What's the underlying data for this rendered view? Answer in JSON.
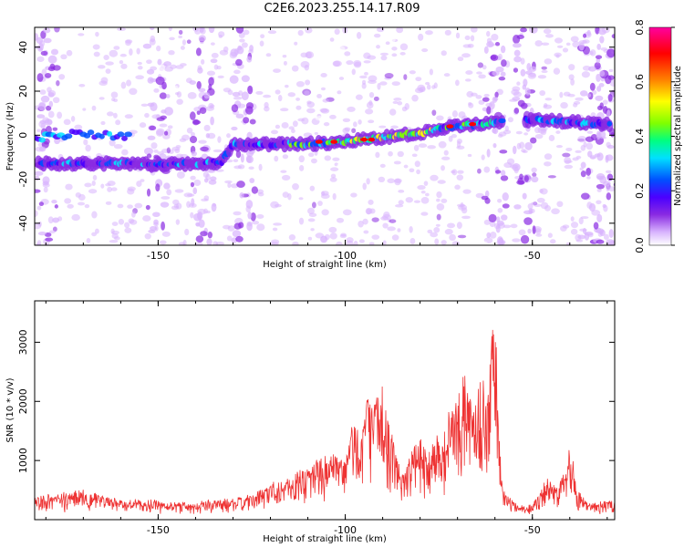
{
  "title": "C2E6.2023.255.14.17.R09",
  "chart_data": [
    {
      "type": "heatmap",
      "xlabel": "Height of straight line (km)",
      "ylabel": "Frequency (Hz)",
      "xlim": [
        -183,
        -28
      ],
      "ylim": [
        -50,
        49
      ],
      "xticks": [
        -150,
        -100,
        -50
      ],
      "yticks": [
        -40,
        -20,
        0,
        20,
        40
      ],
      "colorbar": {
        "label": "Normalized spectral amplitude",
        "range": [
          0,
          0.8
        ],
        "ticks": [
          "0.0",
          "0.2",
          "0.4",
          "0.6",
          "0.8"
        ],
        "colormap": [
          "#ffffff",
          "#d8b4fe",
          "#8a2be2",
          "#4b00ff",
          "#0050ff",
          "#00e0ff",
          "#00ff80",
          "#80ff00",
          "#ffff00",
          "#ff8000",
          "#ff0000",
          "#ff00a0"
        ]
      },
      "ridge": {
        "height_km": [
          -180,
          -170,
          -160,
          -150,
          -140,
          -133,
          -130,
          -120,
          -110,
          -100,
          -95,
          -90,
          -85,
          -80,
          -75,
          -70,
          -65,
          -60,
          -50,
          -40,
          -30
        ],
        "frequency_hz": [
          -13,
          -13,
          -13,
          -13,
          -13,
          -12,
          -4,
          -4,
          -4,
          -3,
          -2,
          -1,
          0,
          1,
          3,
          4,
          5,
          6,
          7,
          6,
          5
        ]
      },
      "upper_band": {
        "height_km": [
          -180,
          -175,
          -170,
          -165,
          -160
        ],
        "frequency_hz": [
          -1,
          0,
          1,
          0,
          -1
        ]
      },
      "noise_columns_km": [
        -180,
        -150,
        -138,
        -127,
        -60,
        -52,
        -34,
        -30
      ],
      "grid": false
    },
    {
      "type": "line",
      "xlabel": "Height of straight line (km)",
      "ylabel": "SNR (10 * v/v)",
      "xlim": [
        -183,
        -28
      ],
      "ylim": [
        0,
        3700
      ],
      "xticks": [
        -150,
        -100,
        -50
      ],
      "yticks": [
        1000,
        2000,
        3000
      ],
      "color": "#ee3333",
      "envelope": {
        "x": [
          -183,
          -175,
          -170,
          -165,
          -160,
          -150,
          -140,
          -130,
          -125,
          -120,
          -115,
          -110,
          -105,
          -100,
          -98,
          -96,
          -94,
          -92,
          -90,
          -88,
          -85,
          -80,
          -78,
          -76,
          -74,
          -72,
          -70,
          -68,
          -66,
          -64,
          -62,
          -60,
          -59,
          -58,
          -55,
          -52,
          -50,
          -48,
          -46,
          -44,
          -42,
          -40,
          -38,
          -35,
          -32,
          -28
        ],
        "y": [
          350,
          420,
          500,
          380,
          300,
          280,
          260,
          320,
          380,
          600,
          700,
          900,
          1100,
          1000,
          1700,
          1500,
          2100,
          2000,
          2300,
          1500,
          800,
          1400,
          1100,
          1500,
          1300,
          1900,
          2000,
          2500,
          1900,
          2400,
          2200,
          3700,
          1600,
          500,
          250,
          200,
          220,
          500,
          700,
          500,
          800,
          1300,
          500,
          250,
          260,
          300
        ]
      },
      "grid": false
    }
  ]
}
